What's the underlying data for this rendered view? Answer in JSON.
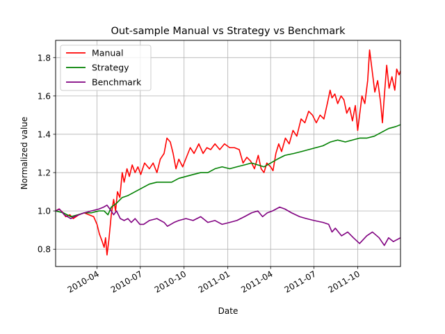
{
  "chart_data": {
    "type": "line",
    "title": "Out-sample Manual vs Strategy vs Benchmark",
    "xlabel": "Date",
    "ylabel": "Normalized value",
    "x_type": "date",
    "xlim": [
      "2010-01-04",
      "2011-12-30"
    ],
    "ylim": [
      0.71,
      1.89
    ],
    "grid": true,
    "legend_position": "top-left",
    "xticks": [
      {
        "date": "2010-04-01",
        "label": "2010-04"
      },
      {
        "date": "2010-07-01",
        "label": "2010-07"
      },
      {
        "date": "2010-10-01",
        "label": "2010-10"
      },
      {
        "date": "2011-01-01",
        "label": "2011-01"
      },
      {
        "date": "2011-04-01",
        "label": "2011-04"
      },
      {
        "date": "2011-07-01",
        "label": "2011-07"
      },
      {
        "date": "2011-10-01",
        "label": "2011-10"
      }
    ],
    "yticks": [
      {
        "value": 0.8,
        "label": "0.8"
      },
      {
        "value": 1.0,
        "label": "1.0"
      },
      {
        "value": 1.2,
        "label": "1.2"
      },
      {
        "value": 1.4,
        "label": "1.4"
      },
      {
        "value": 1.6,
        "label": "1.6"
      },
      {
        "value": 1.8,
        "label": "1.8"
      }
    ],
    "series": [
      {
        "name": "Manual",
        "color": "#ff0000",
        "points": [
          [
            "2010-01-04",
            1.0
          ],
          [
            "2010-01-11",
            1.01
          ],
          [
            "2010-01-20",
            0.99
          ],
          [
            "2010-01-25",
            0.97
          ],
          [
            "2010-02-03",
            0.98
          ],
          [
            "2010-02-10",
            0.96
          ],
          [
            "2010-02-22",
            0.98
          ],
          [
            "2010-03-05",
            0.99
          ],
          [
            "2010-03-15",
            0.98
          ],
          [
            "2010-03-25",
            0.97
          ],
          [
            "2010-04-01",
            0.93
          ],
          [
            "2010-04-06",
            0.88
          ],
          [
            "2010-04-12",
            0.84
          ],
          [
            "2010-04-16",
            0.81
          ],
          [
            "2010-04-19",
            0.86
          ],
          [
            "2010-04-22",
            0.77
          ],
          [
            "2010-04-26",
            0.85
          ],
          [
            "2010-05-01",
            0.98
          ],
          [
            "2010-05-06",
            1.06
          ],
          [
            "2010-05-10",
            1.0
          ],
          [
            "2010-05-14",
            1.1
          ],
          [
            "2010-05-19",
            1.07
          ],
          [
            "2010-05-24",
            1.2
          ],
          [
            "2010-05-28",
            1.15
          ],
          [
            "2010-06-03",
            1.22
          ],
          [
            "2010-06-08",
            1.18
          ],
          [
            "2010-06-14",
            1.24
          ],
          [
            "2010-06-20",
            1.2
          ],
          [
            "2010-06-26",
            1.23
          ],
          [
            "2010-07-02",
            1.19
          ],
          [
            "2010-07-10",
            1.25
          ],
          [
            "2010-07-20",
            1.22
          ],
          [
            "2010-07-28",
            1.25
          ],
          [
            "2010-08-05",
            1.2
          ],
          [
            "2010-08-12",
            1.27
          ],
          [
            "2010-08-20",
            1.3
          ],
          [
            "2010-08-26",
            1.38
          ],
          [
            "2010-09-02",
            1.36
          ],
          [
            "2010-09-08",
            1.3
          ],
          [
            "2010-09-14",
            1.22
          ],
          [
            "2010-09-20",
            1.27
          ],
          [
            "2010-09-28",
            1.23
          ],
          [
            "2010-10-06",
            1.28
          ],
          [
            "2010-10-14",
            1.33
          ],
          [
            "2010-10-22",
            1.3
          ],
          [
            "2010-11-01",
            1.35
          ],
          [
            "2010-11-10",
            1.3
          ],
          [
            "2010-11-18",
            1.33
          ],
          [
            "2010-11-26",
            1.32
          ],
          [
            "2010-12-05",
            1.35
          ],
          [
            "2010-12-15",
            1.32
          ],
          [
            "2010-12-25",
            1.35
          ],
          [
            "2011-01-05",
            1.33
          ],
          [
            "2011-01-15",
            1.33
          ],
          [
            "2011-01-25",
            1.32
          ],
          [
            "2011-02-02",
            1.25
          ],
          [
            "2011-02-10",
            1.28
          ],
          [
            "2011-02-18",
            1.26
          ],
          [
            "2011-02-26",
            1.22
          ],
          [
            "2011-03-06",
            1.29
          ],
          [
            "2011-03-12",
            1.22
          ],
          [
            "2011-03-18",
            1.2
          ],
          [
            "2011-03-24",
            1.25
          ],
          [
            "2011-04-01",
            1.23
          ],
          [
            "2011-04-06",
            1.21
          ],
          [
            "2011-04-12",
            1.3
          ],
          [
            "2011-04-18",
            1.35
          ],
          [
            "2011-04-24",
            1.31
          ],
          [
            "2011-05-02",
            1.38
          ],
          [
            "2011-05-10",
            1.35
          ],
          [
            "2011-05-18",
            1.42
          ],
          [
            "2011-05-26",
            1.39
          ],
          [
            "2011-06-04",
            1.48
          ],
          [
            "2011-06-12",
            1.46
          ],
          [
            "2011-06-20",
            1.52
          ],
          [
            "2011-06-28",
            1.5
          ],
          [
            "2011-07-06",
            1.46
          ],
          [
            "2011-07-14",
            1.5
          ],
          [
            "2011-07-22",
            1.48
          ],
          [
            "2011-07-30",
            1.57
          ],
          [
            "2011-08-04",
            1.63
          ],
          [
            "2011-08-08",
            1.59
          ],
          [
            "2011-08-14",
            1.61
          ],
          [
            "2011-08-20",
            1.56
          ],
          [
            "2011-08-27",
            1.6
          ],
          [
            "2011-09-02",
            1.58
          ],
          [
            "2011-09-08",
            1.51
          ],
          [
            "2011-09-14",
            1.54
          ],
          [
            "2011-09-20",
            1.47
          ],
          [
            "2011-09-26",
            1.55
          ],
          [
            "2011-10-01",
            1.42
          ],
          [
            "2011-10-05",
            1.5
          ],
          [
            "2011-10-10",
            1.6
          ],
          [
            "2011-10-16",
            1.56
          ],
          [
            "2011-10-22",
            1.68
          ],
          [
            "2011-10-26",
            1.84
          ],
          [
            "2011-11-01",
            1.72
          ],
          [
            "2011-11-06",
            1.62
          ],
          [
            "2011-11-12",
            1.68
          ],
          [
            "2011-11-18",
            1.57
          ],
          [
            "2011-11-22",
            1.46
          ],
          [
            "2011-11-26",
            1.6
          ],
          [
            "2011-12-01",
            1.76
          ],
          [
            "2011-12-06",
            1.64
          ],
          [
            "2011-12-12",
            1.7
          ],
          [
            "2011-12-18",
            1.63
          ],
          [
            "2011-12-22",
            1.74
          ],
          [
            "2011-12-27",
            1.71
          ],
          [
            "2011-12-30",
            1.73
          ]
        ]
      },
      {
        "name": "Strategy",
        "color": "#008000",
        "points": [
          [
            "2010-01-04",
            1.0
          ],
          [
            "2010-01-20",
            0.99
          ],
          [
            "2010-02-05",
            0.97
          ],
          [
            "2010-02-20",
            0.98
          ],
          [
            "2010-03-05",
            0.99
          ],
          [
            "2010-03-20",
            0.99
          ],
          [
            "2010-04-05",
            1.0
          ],
          [
            "2010-04-16",
            1.0
          ],
          [
            "2010-04-24",
            0.98
          ],
          [
            "2010-05-01",
            1.02
          ],
          [
            "2010-05-12",
            1.04
          ],
          [
            "2010-05-24",
            1.07
          ],
          [
            "2010-06-05",
            1.08
          ],
          [
            "2010-06-20",
            1.1
          ],
          [
            "2010-07-05",
            1.12
          ],
          [
            "2010-07-20",
            1.14
          ],
          [
            "2010-08-05",
            1.15
          ],
          [
            "2010-08-20",
            1.15
          ],
          [
            "2010-09-05",
            1.15
          ],
          [
            "2010-09-20",
            1.17
          ],
          [
            "2010-10-05",
            1.18
          ],
          [
            "2010-10-20",
            1.19
          ],
          [
            "2010-11-05",
            1.2
          ],
          [
            "2010-11-20",
            1.2
          ],
          [
            "2010-12-05",
            1.22
          ],
          [
            "2010-12-20",
            1.23
          ],
          [
            "2011-01-05",
            1.22
          ],
          [
            "2011-01-20",
            1.23
          ],
          [
            "2011-02-05",
            1.24
          ],
          [
            "2011-02-20",
            1.25
          ],
          [
            "2011-03-05",
            1.24
          ],
          [
            "2011-03-18",
            1.23
          ],
          [
            "2011-04-01",
            1.25
          ],
          [
            "2011-04-15",
            1.27
          ],
          [
            "2011-05-01",
            1.29
          ],
          [
            "2011-05-20",
            1.3
          ],
          [
            "2011-06-05",
            1.31
          ],
          [
            "2011-06-20",
            1.32
          ],
          [
            "2011-07-05",
            1.33
          ],
          [
            "2011-07-20",
            1.34
          ],
          [
            "2011-08-05",
            1.36
          ],
          [
            "2011-08-20",
            1.37
          ],
          [
            "2011-09-05",
            1.36
          ],
          [
            "2011-09-20",
            1.37
          ],
          [
            "2011-10-05",
            1.38
          ],
          [
            "2011-10-20",
            1.38
          ],
          [
            "2011-11-05",
            1.39
          ],
          [
            "2011-11-20",
            1.41
          ],
          [
            "2011-12-05",
            1.43
          ],
          [
            "2011-12-20",
            1.44
          ],
          [
            "2011-12-30",
            1.45
          ]
        ]
      },
      {
        "name": "Benchmark",
        "color": "#800080",
        "points": [
          [
            "2010-01-04",
            1.0
          ],
          [
            "2010-01-12",
            1.01
          ],
          [
            "2010-01-22",
            0.98
          ],
          [
            "2010-02-05",
            0.96
          ],
          [
            "2010-02-12",
            0.97
          ],
          [
            "2010-02-22",
            0.98
          ],
          [
            "2010-03-05",
            0.99
          ],
          [
            "2010-03-20",
            1.0
          ],
          [
            "2010-04-05",
            1.01
          ],
          [
            "2010-04-15",
            1.02
          ],
          [
            "2010-04-22",
            1.03
          ],
          [
            "2010-04-28",
            1.01
          ],
          [
            "2010-05-06",
            0.98
          ],
          [
            "2010-05-12",
            1.0
          ],
          [
            "2010-05-20",
            0.96
          ],
          [
            "2010-05-28",
            0.95
          ],
          [
            "2010-06-05",
            0.96
          ],
          [
            "2010-06-12",
            0.94
          ],
          [
            "2010-06-20",
            0.96
          ],
          [
            "2010-06-30",
            0.93
          ],
          [
            "2010-07-08",
            0.93
          ],
          [
            "2010-07-20",
            0.95
          ],
          [
            "2010-08-05",
            0.96
          ],
          [
            "2010-08-20",
            0.94
          ],
          [
            "2010-08-27",
            0.92
          ],
          [
            "2010-09-10",
            0.94
          ],
          [
            "2010-09-20",
            0.95
          ],
          [
            "2010-10-05",
            0.96
          ],
          [
            "2010-10-20",
            0.95
          ],
          [
            "2010-11-05",
            0.97
          ],
          [
            "2010-11-20",
            0.94
          ],
          [
            "2010-12-05",
            0.95
          ],
          [
            "2010-12-20",
            0.93
          ],
          [
            "2011-01-05",
            0.94
          ],
          [
            "2011-01-20",
            0.95
          ],
          [
            "2011-02-05",
            0.97
          ],
          [
            "2011-02-20",
            0.99
          ],
          [
            "2011-03-05",
            1.0
          ],
          [
            "2011-03-15",
            0.97
          ],
          [
            "2011-03-25",
            0.99
          ],
          [
            "2011-04-05",
            1.0
          ],
          [
            "2011-04-20",
            1.02
          ],
          [
            "2011-05-01",
            1.01
          ],
          [
            "2011-05-15",
            0.99
          ],
          [
            "2011-06-01",
            0.97
          ],
          [
            "2011-06-15",
            0.96
          ],
          [
            "2011-07-01",
            0.95
          ],
          [
            "2011-07-20",
            0.94
          ],
          [
            "2011-08-01",
            0.93
          ],
          [
            "2011-08-08",
            0.89
          ],
          [
            "2011-08-15",
            0.91
          ],
          [
            "2011-08-28",
            0.87
          ],
          [
            "2011-09-10",
            0.89
          ],
          [
            "2011-09-22",
            0.86
          ],
          [
            "2011-10-05",
            0.83
          ],
          [
            "2011-10-20",
            0.87
          ],
          [
            "2011-11-01",
            0.89
          ],
          [
            "2011-11-15",
            0.86
          ],
          [
            "2011-11-26",
            0.82
          ],
          [
            "2011-12-05",
            0.86
          ],
          [
            "2011-12-15",
            0.84
          ],
          [
            "2011-12-30",
            0.86
          ]
        ]
      }
    ]
  }
}
